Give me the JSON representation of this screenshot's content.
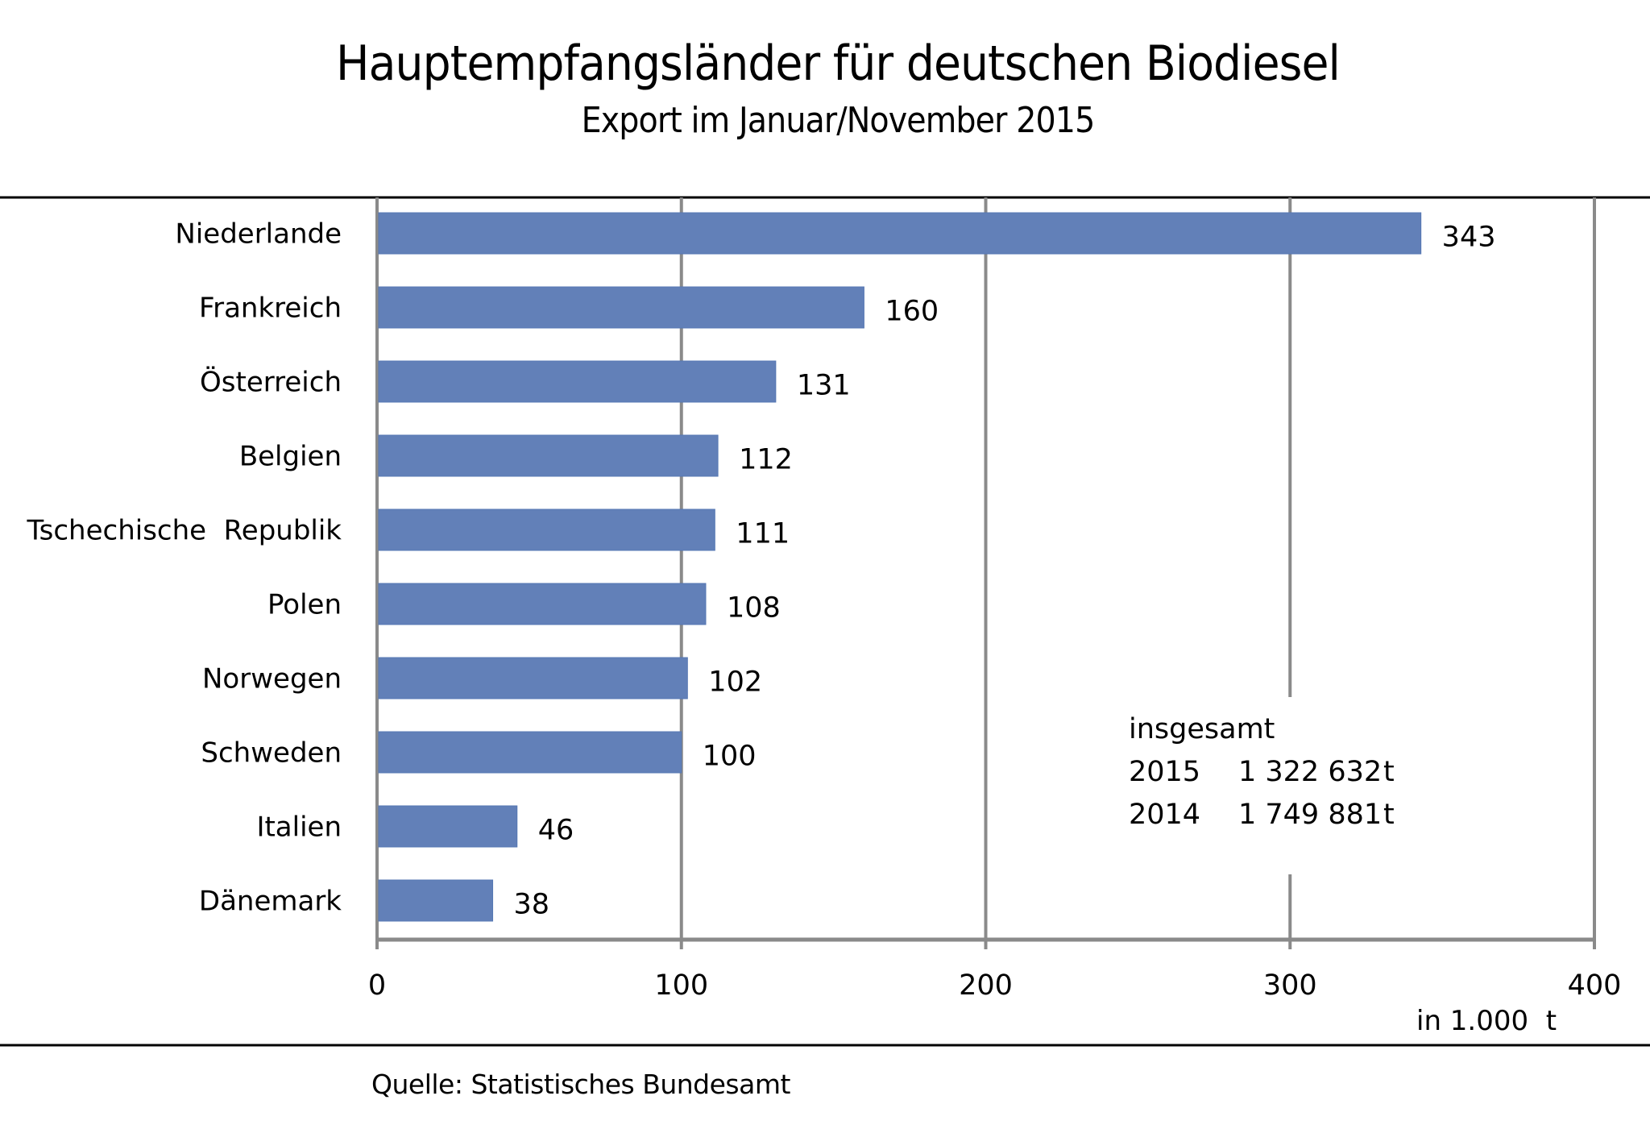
{
  "chart_data": {
    "type": "bar",
    "orientation": "horizontal",
    "title": "Hauptempfangsländer für deutschen Biodiesel",
    "subtitle": "Export im Januar/November 2015",
    "categories": [
      "Niederlande",
      "Frankreich",
      "Österreich",
      "Belgien",
      "Tschechische  Republik",
      "Polen",
      "Norwegen",
      "Schweden",
      "Italien",
      "Dänemark"
    ],
    "values": [
      343,
      160,
      131,
      112,
      111,
      108,
      102,
      100,
      46,
      38
    ],
    "value_labels": [
      "343",
      "160",
      "131",
      "112",
      "111",
      "108",
      "102",
      "100",
      "46",
      "38"
    ],
    "xlabel": "in 1.000  t",
    "ylabel": "",
    "xlim": [
      0,
      400
    ],
    "x_ticks": [
      0,
      100,
      200,
      300,
      400
    ],
    "x_tick_labels": [
      "0",
      "100",
      "200",
      "300",
      "400"
    ],
    "grid": true,
    "bar_color": "#6280b8",
    "grid_color": "#8a8a8a",
    "annotation": {
      "heading": "insgesamt",
      "rows": [
        {
          "year": "2015",
          "value": "1 322  632",
          "unit": "t"
        },
        {
          "year": "2014",
          "value": "1 749  881",
          "unit": "t"
        }
      ]
    },
    "source": "Quelle: Statistisches Bundesamt"
  }
}
